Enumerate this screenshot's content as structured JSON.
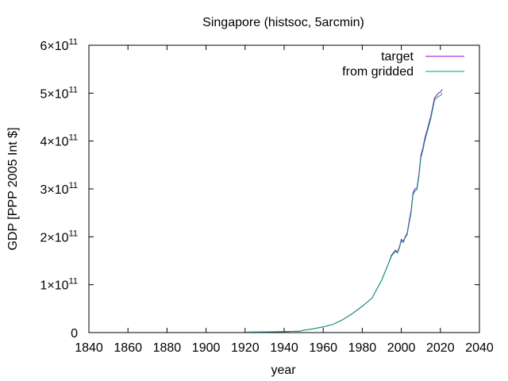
{
  "chart_data": {
    "type": "line",
    "title": "Singapore (histsoc, 5arcmin)",
    "xlabel": "year",
    "ylabel": "GDP [PPP 2005 Int $]",
    "xlim": [
      1840,
      2040
    ],
    "ylim": [
      0,
      600000000000
    ],
    "grid": false,
    "legend_position": "top-right",
    "x_ticks": [
      {
        "value": 1840,
        "label": "1840"
      },
      {
        "value": 1860,
        "label": "1860"
      },
      {
        "value": 1880,
        "label": "1880"
      },
      {
        "value": 1900,
        "label": "1900"
      },
      {
        "value": 1920,
        "label": "1920"
      },
      {
        "value": 1940,
        "label": "1940"
      },
      {
        "value": 1960,
        "label": "1960"
      },
      {
        "value": 1980,
        "label": "1980"
      },
      {
        "value": 2000,
        "label": "2000"
      },
      {
        "value": 2020,
        "label": "2020"
      },
      {
        "value": 2040,
        "label": "2040"
      }
    ],
    "y_ticks": [
      {
        "value": 0,
        "mantissa": "0",
        "exponent": ""
      },
      {
        "value": 100000000000,
        "mantissa": "1×10",
        "exponent": "11"
      },
      {
        "value": 200000000000,
        "mantissa": "2×10",
        "exponent": "11"
      },
      {
        "value": 300000000000,
        "mantissa": "3×10",
        "exponent": "11"
      },
      {
        "value": 400000000000,
        "mantissa": "4×10",
        "exponent": "11"
      },
      {
        "value": 500000000000,
        "mantissa": "5×10",
        "exponent": "11"
      },
      {
        "value": 600000000000,
        "mantissa": "6×10",
        "exponent": "11"
      }
    ],
    "series": [
      {
        "name": "target",
        "color": "#9400d3",
        "x": [
          1921,
          1930,
          1940,
          1948,
          1950,
          1955,
          1960,
          1965,
          1970,
          1975,
          1980,
          1985,
          1990,
          1993,
          1995,
          1997,
          1998,
          1999,
          2000,
          2001,
          2002,
          2003,
          2004,
          2005,
          2006,
          2007,
          2008,
          2009,
          2010,
          2011,
          2012,
          2013,
          2014,
          2015,
          2016,
          2017,
          2018,
          2019,
          2020,
          2021
        ],
        "values": [
          1000000000,
          1500000000,
          2000000000,
          3000000000,
          5000000000,
          8000000000,
          12000000000,
          17000000000,
          27000000000,
          40000000000,
          55000000000,
          72000000000,
          110000000000,
          140000000000,
          162000000000,
          172000000000,
          168000000000,
          178000000000,
          195000000000,
          190000000000,
          200000000000,
          208000000000,
          232000000000,
          255000000000,
          292000000000,
          300000000000,
          302000000000,
          330000000000,
          370000000000,
          385000000000,
          405000000000,
          420000000000,
          435000000000,
          450000000000,
          470000000000,
          490000000000,
          495000000000,
          500000000000,
          502000000000,
          508000000000
        ]
      },
      {
        "name": "from gridded",
        "color": "#009e73",
        "x": [
          1921,
          1930,
          1940,
          1948,
          1950,
          1955,
          1960,
          1965,
          1970,
          1975,
          1980,
          1985,
          1990,
          1993,
          1995,
          1997,
          1998,
          1999,
          2000,
          2001,
          2002,
          2003,
          2004,
          2005,
          2006,
          2007,
          2008,
          2009,
          2010,
          2011,
          2012,
          2013,
          2014,
          2015,
          2016,
          2017,
          2018,
          2019,
          2020,
          2021
        ],
        "values": [
          1000000000,
          1500000000,
          2000000000,
          3000000000,
          5000000000,
          8000000000,
          12000000000,
          17000000000,
          27000000000,
          40000000000,
          55000000000,
          72000000000,
          110000000000,
          140000000000,
          160000000000,
          170000000000,
          166000000000,
          176000000000,
          192000000000,
          188000000000,
          198000000000,
          205000000000,
          228000000000,
          250000000000,
          288000000000,
          296000000000,
          298000000000,
          325000000000,
          365000000000,
          380000000000,
          400000000000,
          415000000000,
          430000000000,
          445000000000,
          465000000000,
          485000000000,
          490000000000,
          493000000000,
          495000000000,
          500000000000
        ]
      }
    ]
  }
}
